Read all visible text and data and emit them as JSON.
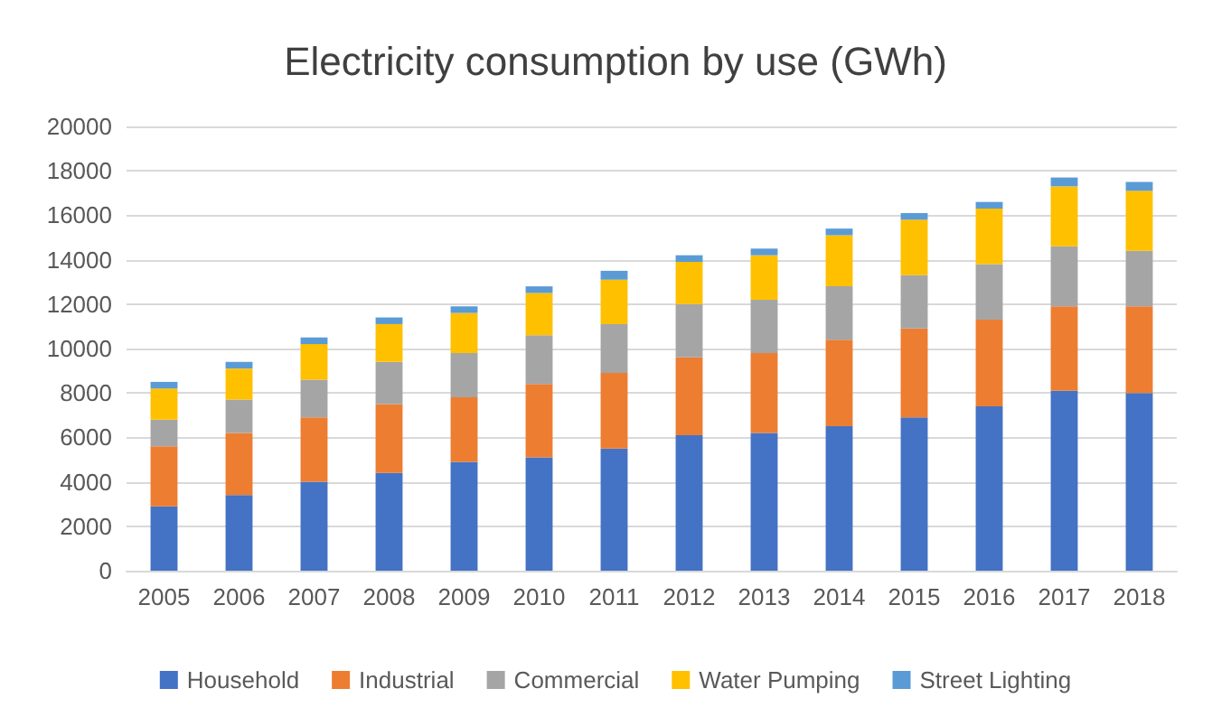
{
  "chart_data": {
    "type": "bar",
    "title": "Electricity consumption by use (GWh)",
    "stacked": true,
    "categories": [
      "2005",
      "2006",
      "2007",
      "2008",
      "2009",
      "2010",
      "2011",
      "2012",
      "2013",
      "2014",
      "2015",
      "2016",
      "2017",
      "2018"
    ],
    "series": [
      {
        "name": "Household",
        "color": "#4472c4",
        "values": [
          2900,
          3400,
          4000,
          4400,
          4900,
          5100,
          5500,
          6100,
          6200,
          6500,
          6900,
          7400,
          8100,
          8000
        ]
      },
      {
        "name": "Industrial",
        "color": "#ed7d31",
        "values": [
          2700,
          2800,
          2900,
          3100,
          2900,
          3300,
          3400,
          3500,
          3600,
          3900,
          4000,
          3900,
          3800,
          3900
        ]
      },
      {
        "name": "Commercial",
        "color": "#a5a5a5",
        "values": [
          1200,
          1500,
          1700,
          1900,
          2000,
          2200,
          2200,
          2400,
          2400,
          2400,
          2400,
          2500,
          2700,
          2500
        ]
      },
      {
        "name": "Water Pumping",
        "color": "#ffc000",
        "values": [
          1400,
          1400,
          1600,
          1700,
          1800,
          1900,
          2000,
          1900,
          2000,
          2300,
          2500,
          2500,
          2700,
          2700
        ]
      },
      {
        "name": "Street Lighting",
        "color": "#5b9bd5",
        "values": [
          300,
          300,
          300,
          300,
          300,
          300,
          400,
          300,
          300,
          300,
          300,
          300,
          400,
          400
        ]
      }
    ],
    "ylim": [
      0,
      20000
    ],
    "yticks": [
      0,
      2000,
      4000,
      6000,
      8000,
      10000,
      12000,
      14000,
      16000,
      18000,
      20000
    ],
    "grid": "y",
    "legend": "bottom"
  }
}
